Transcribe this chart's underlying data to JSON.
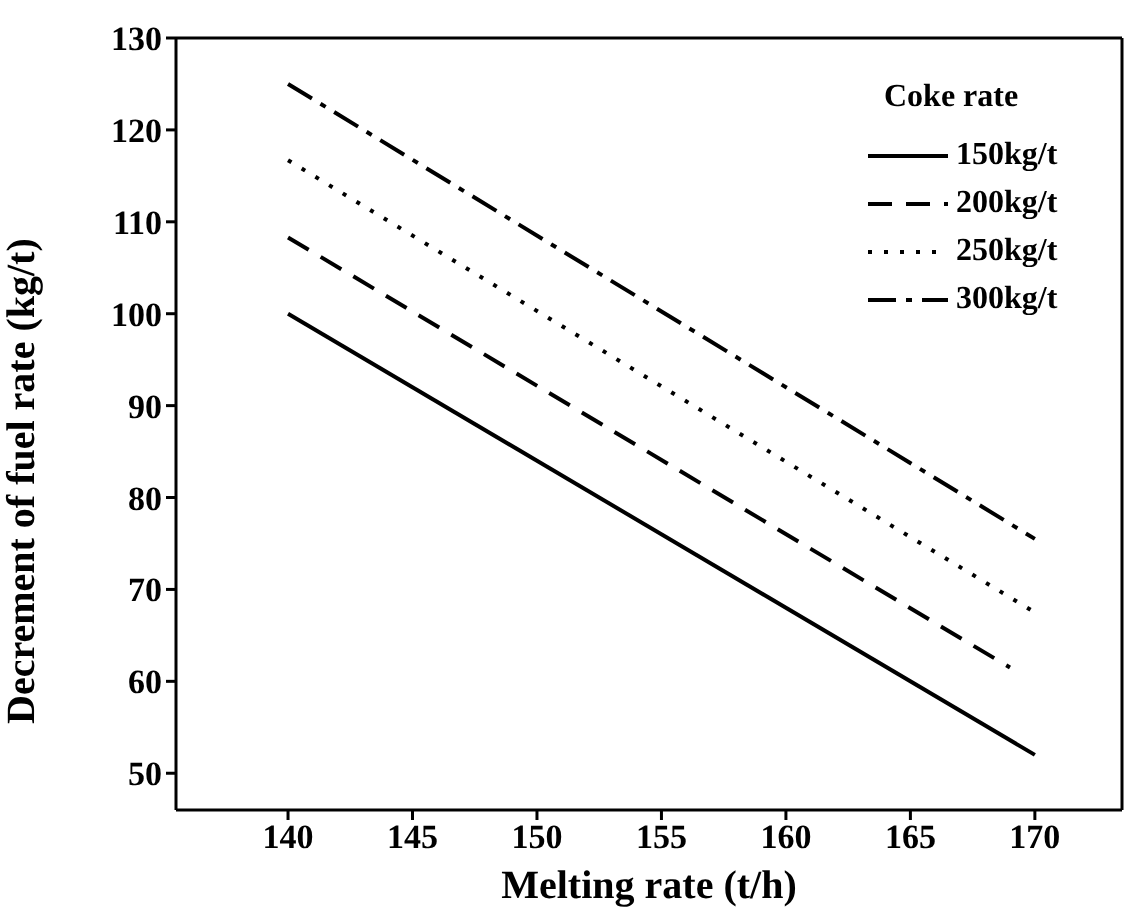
{
  "chart_data": {
    "type": "line",
    "xlabel": "Melting rate (t/h)",
    "ylabel": "Decrement of fuel rate (kg/t)",
    "legend_title": "Coke rate",
    "xlim": [
      135.5,
      173.5
    ],
    "ylim": [
      46,
      130
    ],
    "xticks": [
      140,
      145,
      150,
      155,
      160,
      165,
      170
    ],
    "yticks": [
      50,
      60,
      70,
      80,
      90,
      100,
      110,
      120,
      130
    ],
    "legend": "top right",
    "grid": false,
    "series": [
      {
        "name": "150kg/t",
        "color": "#000000",
        "line_style": "solid",
        "x": [
          140,
          170
        ],
        "values": [
          100,
          52
        ]
      },
      {
        "name": "200kg/t",
        "color": "#000000",
        "line_style": "dashed",
        "x": [
          140,
          169
        ],
        "values": [
          108.3,
          61.5
        ]
      },
      {
        "name": "250kg/t",
        "color": "#000000",
        "line_style": "dotted",
        "x": [
          140,
          170
        ],
        "values": [
          116.7,
          67.5
        ]
      },
      {
        "name": "300kg/t",
        "color": "#000000",
        "line_style": "dashdot",
        "x": [
          140,
          170
        ],
        "values": [
          125,
          75.5
        ]
      }
    ]
  }
}
